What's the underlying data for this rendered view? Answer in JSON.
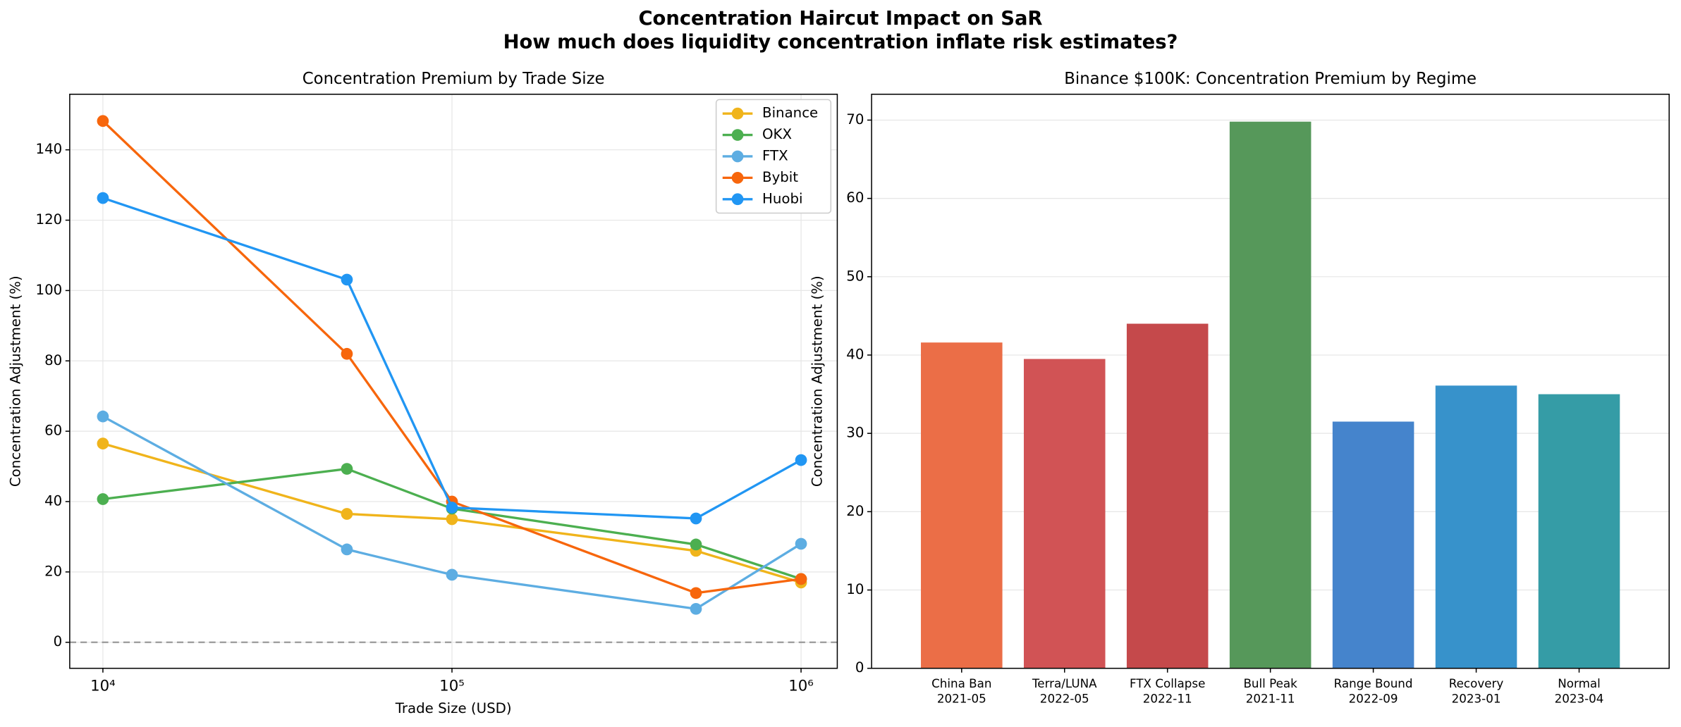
{
  "title": "Concentration Haircut Impact on SaR",
  "subtitle": "How much does liquidity concentration inflate risk estimates?",
  "chart_data": [
    {
      "type": "line",
      "title": "Concentration Premium by Trade Size",
      "xlabel": "Trade Size (USD)",
      "ylabel": "Concentration Adjustment (%)",
      "xscale": "log",
      "grid": true,
      "legend": "upper right",
      "x": [
        10000,
        50000,
        100000,
        500000,
        1000000
      ],
      "xlim": [
        8035,
        1270000
      ],
      "xticks": [
        {
          "value": 10000,
          "label": "10⁴"
        },
        {
          "value": 100000,
          "label": "10⁵"
        },
        {
          "value": 1000000,
          "label": "10⁶"
        }
      ],
      "ylim": [
        -7.4,
        155.8
      ],
      "yticks": [
        0,
        20,
        40,
        60,
        80,
        100,
        120,
        140
      ],
      "reference_line": 0,
      "reference_color": "#999999",
      "series": [
        {
          "name": "Binance",
          "color": "#f0b41b",
          "values": [
            56.5,
            36.5,
            35,
            26,
            17
          ]
        },
        {
          "name": "OKX",
          "color": "#4caf50",
          "values": [
            40.7,
            49.3,
            38,
            27.8,
            18
          ]
        },
        {
          "name": "FTX",
          "color": "#5dade2",
          "values": [
            64.2,
            26.4,
            19.2,
            9.5,
            28
          ]
        },
        {
          "name": "Bybit",
          "color": "#f7660c",
          "values": [
            148.2,
            82,
            40,
            14,
            18
          ]
        },
        {
          "name": "Huobi",
          "color": "#2196f3",
          "values": [
            126.3,
            103.1,
            38.3,
            35.2,
            51.8
          ]
        }
      ]
    },
    {
      "type": "bar",
      "title": "Binance $100K: Concentration Premium by Regime",
      "ylabel": "Concentration Adjustment (%)",
      "grid": true,
      "categories": [
        [
          "China Ban",
          "2021-05"
        ],
        [
          "Terra/LUNA",
          "2022-05"
        ],
        [
          "FTX Collapse",
          "2022-11"
        ],
        [
          "Bull Peak",
          "2021-11"
        ],
        [
          "Range Bound",
          "2022-09"
        ],
        [
          "Recovery",
          "2023-01"
        ],
        [
          "Normal",
          "2023-04"
        ]
      ],
      "values": [
        41.6,
        39.5,
        44,
        69.8,
        31.5,
        36.1,
        35
      ],
      "colors": [
        "#eb6e47",
        "#d15355",
        "#c5494b",
        "#56985a",
        "#4584cc",
        "#3792cb",
        "#359ca6"
      ],
      "ylim": [
        0,
        73.3
      ],
      "yticks": [
        0,
        10,
        20,
        30,
        40,
        50,
        60,
        70
      ]
    }
  ]
}
